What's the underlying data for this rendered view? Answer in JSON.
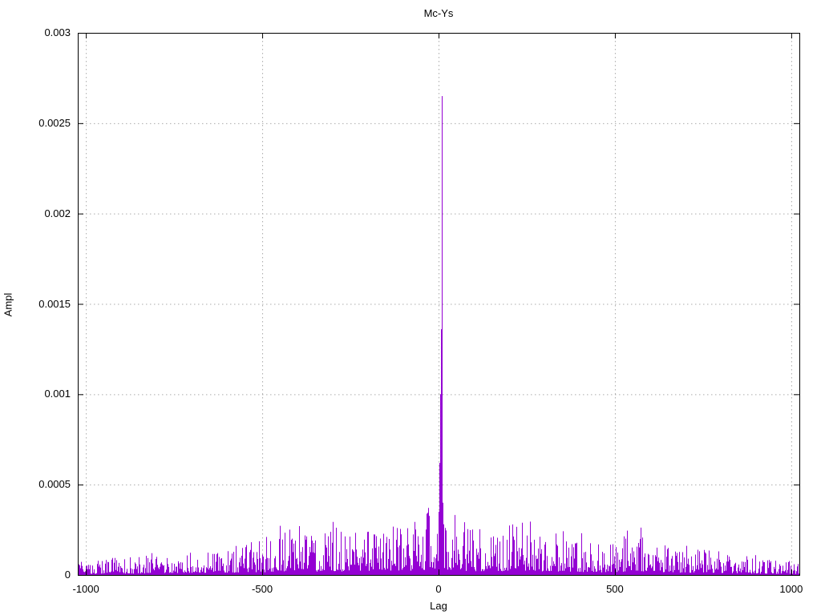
{
  "page": {
    "background": "#ffffff",
    "text_color": "#000000"
  },
  "chart_data": {
    "type": "line",
    "plot_style": "impulse-like noisy correlation trace",
    "title": "Mc-Ys",
    "xlabel": "Lag",
    "ylabel": "Ampl",
    "xlim": [
      -1023,
      1023
    ],
    "ylim": [
      0,
      0.003
    ],
    "xticks": [
      {
        "v": -1000,
        "label": "-1000"
      },
      {
        "v": -500,
        "label": "-500"
      },
      {
        "v": 0,
        "label": "0"
      },
      {
        "v": 500,
        "label": "500"
      },
      {
        "v": 1000,
        "label": "1000"
      }
    ],
    "yticks": [
      {
        "v": 0,
        "label": "0"
      },
      {
        "v": 0.0005,
        "label": "0.0005"
      },
      {
        "v": 0.001,
        "label": "0.001"
      },
      {
        "v": 0.0015,
        "label": "0.0015"
      },
      {
        "v": 0.002,
        "label": "0.002"
      },
      {
        "v": 0.0025,
        "label": "0.0025"
      },
      {
        "v": 0.003,
        "label": "0.003"
      }
    ],
    "grid": {
      "visible": true,
      "style": "dotted",
      "color": "#ababab"
    },
    "line_color": "#9400d3",
    "border_color": "#000000",
    "legend": "none",
    "peak": {
      "lag": 8,
      "value": 0.00265
    },
    "center_points": [
      [
        0,
        0.00035
      ],
      [
        2,
        0.00062
      ],
      [
        4,
        0.001
      ],
      [
        6,
        0.00136
      ],
      [
        8,
        0.00265
      ],
      [
        10,
        0.00075
      ],
      [
        12,
        0.0004
      ],
      [
        14,
        0.00028
      ]
    ],
    "noise_envelope": [
      [
        -1023,
        8e-05
      ],
      [
        -900,
        0.0001
      ],
      [
        -800,
        0.00012
      ],
      [
        -700,
        0.00014
      ],
      [
        -600,
        0.00016
      ],
      [
        -500,
        0.0002
      ],
      [
        -420,
        0.0003
      ],
      [
        -350,
        0.00024
      ],
      [
        -300,
        0.00028
      ],
      [
        -250,
        0.00026
      ],
      [
        -200,
        0.0003
      ],
      [
        -150,
        0.00026
      ],
      [
        -100,
        0.00028
      ],
      [
        -50,
        0.00032
      ],
      [
        -20,
        0.0004
      ],
      [
        0,
        0.00042
      ],
      [
        20,
        0.0004
      ],
      [
        50,
        0.00032
      ],
      [
        100,
        0.00028
      ],
      [
        150,
        0.00026
      ],
      [
        200,
        0.00028
      ],
      [
        255,
        0.00034
      ],
      [
        300,
        0.00026
      ],
      [
        350,
        0.00024
      ],
      [
        400,
        0.00022
      ],
      [
        450,
        0.0002
      ],
      [
        500,
        0.0002
      ],
      [
        570,
        0.00028
      ],
      [
        650,
        0.00018
      ],
      [
        700,
        0.00016
      ],
      [
        800,
        0.00014
      ],
      [
        900,
        0.0001
      ],
      [
        1023,
        7e-05
      ]
    ],
    "noise": {
      "seed": 77,
      "lag_step": 2,
      "base_fraction": 0.08,
      "shape_exponent": 2.2
    }
  }
}
